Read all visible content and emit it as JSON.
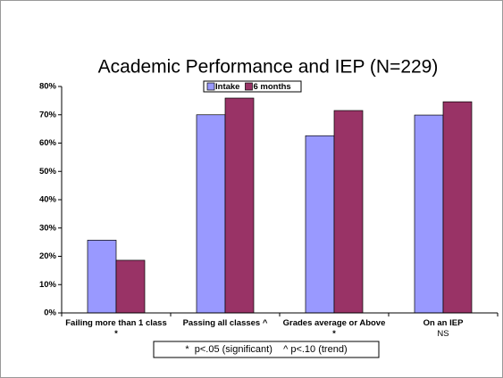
{
  "chart_data": {
    "type": "bar",
    "title": "Academic Performance and IEP (N=229)",
    "categories": [
      "Failing more than 1 class *",
      "Passing all classes ^",
      "Grades average or Above *",
      "On an IEP"
    ],
    "category_note": "NS",
    "series": [
      {
        "name": "Intake",
        "color": "#9999ff",
        "values": [
          25.7,
          70,
          62.6,
          69.9
        ]
      },
      {
        "name": "6 months",
        "color": "#993366",
        "values": [
          18.6,
          75.9,
          71.5,
          74.6
        ]
      }
    ],
    "ylim": [
      0,
      80
    ],
    "yticks": [
      {
        "value": 0,
        "label": "0%"
      },
      {
        "value": 10,
        "label": "10%"
      },
      {
        "value": 20,
        "label": "20%"
      },
      {
        "value": 30,
        "label": "30%"
      },
      {
        "value": 40,
        "label": "40%"
      },
      {
        "value": 50,
        "label": "50%"
      },
      {
        "value": 60,
        "label": "60%"
      },
      {
        "value": 70,
        "label": "70%"
      },
      {
        "value": 80,
        "label": "80%"
      }
    ],
    "footnote": "*  p<.05 (significant)    ^ p<.10 (trend)"
  }
}
